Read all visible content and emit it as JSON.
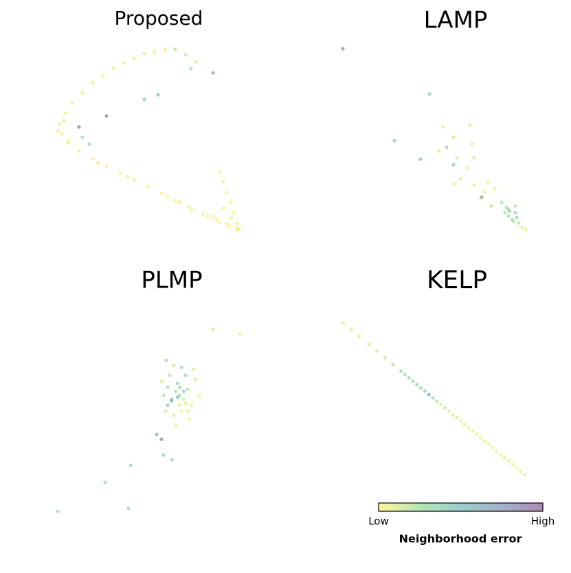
{
  "chart_data": [
    {
      "type": "scatter",
      "title": "Proposed",
      "xlim": [
        0,
        100
      ],
      "ylim": [
        0,
        100
      ],
      "x": [
        58.6,
        53.4,
        48.3,
        43.1,
        37.9,
        32.8,
        27.6,
        22.4,
        17.2,
        12.1,
        8.6,
        5.9,
        6.9,
        10.3,
        15.5,
        22.4,
        29.3,
        36.2,
        43.1,
        50,
        56.9,
        63.8,
        70.7,
        77.6,
        84.5,
        89.7,
        94.8,
        86.2,
        87.9,
        89.7,
        91.4,
        93.1,
        94.8,
        63.8,
        69,
        74.1,
        71.7,
        82.8,
        55.2,
        48.3,
        29.3,
        15.5,
        17.2,
        20.7,
        60,
        66,
        72,
        80,
        86,
        91,
        95,
        96,
        92,
        88,
        83,
        40,
        25,
        10,
        5,
        8
      ],
      "y": [
        95.9,
        94.8,
        93.8,
        91.4,
        89,
        86.2,
        82.8,
        79.3,
        74.1,
        69,
        63.8,
        58.6,
        53.4,
        49,
        44.8,
        40.7,
        37.2,
        33.8,
        30.3,
        26.9,
        23.4,
        20,
        16.6,
        13.1,
        10.3,
        8.3,
        5.9,
        34.5,
        29.3,
        24.1,
        19,
        13.8,
        8.6,
        95.9,
        93.1,
        89.7,
        86.2,
        84.1,
        73.1,
        70.7,
        62.4,
        56.9,
        51.7,
        48.3,
        22,
        19,
        15,
        12,
        9,
        7,
        5,
        6,
        11,
        16,
        12,
        32,
        39,
        50,
        55,
        60
      ],
      "error": [
        0.05,
        0.05,
        0.08,
        0.06,
        0.05,
        0.05,
        0.04,
        0.06,
        0.05,
        0.04,
        0.05,
        0.04,
        0.03,
        0.03,
        0.04,
        0.03,
        0.03,
        0.02,
        0.02,
        0.02,
        0.02,
        0.01,
        0.01,
        0.01,
        0.01,
        0.01,
        0.01,
        0.02,
        0.02,
        0.01,
        0.01,
        0.01,
        0.01,
        0.2,
        0.15,
        0.1,
        0.25,
        0.75,
        0.45,
        0.4,
        0.85,
        0.9,
        0.3,
        0.35,
        0.02,
        0.01,
        0.01,
        0.01,
        0.01,
        0.01,
        0.01,
        0.01,
        0.01,
        0.01,
        0.02,
        0.05,
        0.04,
        0.03,
        0.05,
        0.08
      ]
    },
    {
      "type": "scatter",
      "title": "LAMP",
      "xlim": [
        0,
        100
      ],
      "ylim": [
        0,
        100
      ],
      "x": [
        4.8,
        48.3,
        30.7,
        43.8,
        68.6,
        55.2,
        60.3,
        56.9,
        62.1,
        67.2,
        63.8,
        70.7,
        75.9,
        81,
        74.1,
        79.3,
        84.5,
        87.9,
        91.4,
        89.7,
        93.1,
        87.9,
        94.8,
        96.6,
        86.2,
        91.4,
        92.1,
        74.5,
        60.3,
        69.7,
        53.1,
        60.7,
        77.6,
        70.7,
        88.5,
        90.5,
        86.8
      ],
      "y": [
        96.2,
        73.4,
        50,
        40.7,
        57.9,
        56.9,
        51.7,
        46.6,
        41.4,
        36.2,
        31,
        27.6,
        24.1,
        25.9,
        20.7,
        17.2,
        19,
        15.5,
        13.8,
        10.3,
        8.6,
        12.1,
        6.2,
        5.2,
        13.8,
        17.2,
        11.4,
        21.7,
        37.9,
        48.3,
        44.8,
        28.3,
        29.3,
        41.4,
        14.5,
        9.5,
        16.5
      ],
      "error": [
        0.8,
        0.4,
        0.45,
        0.45,
        0.1,
        0.05,
        0.08,
        0.3,
        0.1,
        0.05,
        0.06,
        0.05,
        0.05,
        0.05,
        0.1,
        0.15,
        0.2,
        0.25,
        0.3,
        0.25,
        0.2,
        0.3,
        0.1,
        0.05,
        0.25,
        0.2,
        0.3,
        0.7,
        0.4,
        0.05,
        0.1,
        0.05,
        0.05,
        0.08,
        0.3,
        0.2,
        0.25
      ]
    },
    {
      "type": "scatter",
      "title": "PLMP",
      "xlim": [
        0,
        100
      ],
      "ylim": [
        0,
        100
      ],
      "x": [
        4.8,
        40.3,
        28.6,
        41.4,
        57.9,
        62.1,
        56.9,
        54.5,
        96.2,
        82.8,
        59.3,
        66,
        64,
        68,
        62,
        70,
        65,
        60,
        72,
        67,
        63,
        69,
        61,
        74,
        58,
        66,
        64,
        71,
        59,
        76,
        67,
        63,
        73,
        57,
        62,
        65,
        68,
        69,
        66,
        60,
        70
      ],
      "y": [
        1.7,
        3.1,
        16.2,
        24.8,
        30,
        27.6,
        37.9,
        40.3,
        91,
        93.1,
        77.6,
        60,
        62,
        58,
        57,
        63,
        66,
        64,
        55,
        52,
        50,
        70,
        70,
        68,
        60,
        55,
        45,
        48,
        52,
        60,
        74,
        75,
        73,
        67,
        58,
        59,
        62,
        56,
        64,
        55,
        52
      ],
      "error": [
        0.3,
        0.3,
        0.3,
        0.3,
        0.35,
        0.3,
        0.85,
        0.6,
        0.05,
        0.1,
        0.3,
        0.3,
        0.25,
        0.1,
        0.35,
        0.2,
        0.3,
        0.25,
        0.05,
        0.05,
        0.1,
        0.3,
        0.2,
        0.1,
        0.2,
        0.05,
        0.05,
        0.05,
        0.1,
        0.05,
        0.3,
        0.15,
        0.1,
        0.1,
        0.45,
        0.5,
        0.4,
        0.05,
        0.35,
        0.4,
        0.03
      ]
    },
    {
      "type": "scatter",
      "title": "KELP",
      "xlim": [
        0,
        100
      ],
      "ylim": [
        0,
        100
      ],
      "x": [
        5,
        9,
        13,
        18,
        22,
        26,
        30,
        34,
        36,
        38,
        40,
        42,
        44,
        46,
        48,
        50,
        52,
        54,
        56,
        58,
        60,
        62,
        64,
        66,
        68,
        70,
        72,
        74,
        76,
        78,
        80,
        82,
        84,
        86,
        88,
        90,
        92,
        94,
        96
      ],
      "y": [
        96.4,
        93.1,
        89.7,
        85.5,
        82.2,
        78.8,
        75.5,
        72.1,
        70.5,
        68.8,
        67.1,
        65.4,
        63.7,
        62.1,
        60.4,
        58.7,
        57,
        55.4,
        53.7,
        52,
        50.3,
        48.7,
        47,
        45.3,
        43.6,
        42,
        40.3,
        38.6,
        36.9,
        35.3,
        33.6,
        31.9,
        30.2,
        28.6,
        26.9,
        25.2,
        23.5,
        21.8,
        20.2
      ],
      "error": [
        0.05,
        0.05,
        0.08,
        0.1,
        0.1,
        0.15,
        0.2,
        0.3,
        0.25,
        0.3,
        0.3,
        0.35,
        0.3,
        0.35,
        0.65,
        0.3,
        0.2,
        0.1,
        0.15,
        0.1,
        0.05,
        0.08,
        0.05,
        0.05,
        0.03,
        0.05,
        0.03,
        0.03,
        0.03,
        0.03,
        0.03,
        0.05,
        0.03,
        0.05,
        0.03,
        0.03,
        0.03,
        0.03,
        0.05
      ]
    }
  ],
  "colorbar": {
    "label": "Neighborhood error",
    "low": "Low",
    "high": "High",
    "colors": [
      "#fde725",
      "#5ec962",
      "#21918c",
      "#3b528b",
      "#440154"
    ]
  }
}
